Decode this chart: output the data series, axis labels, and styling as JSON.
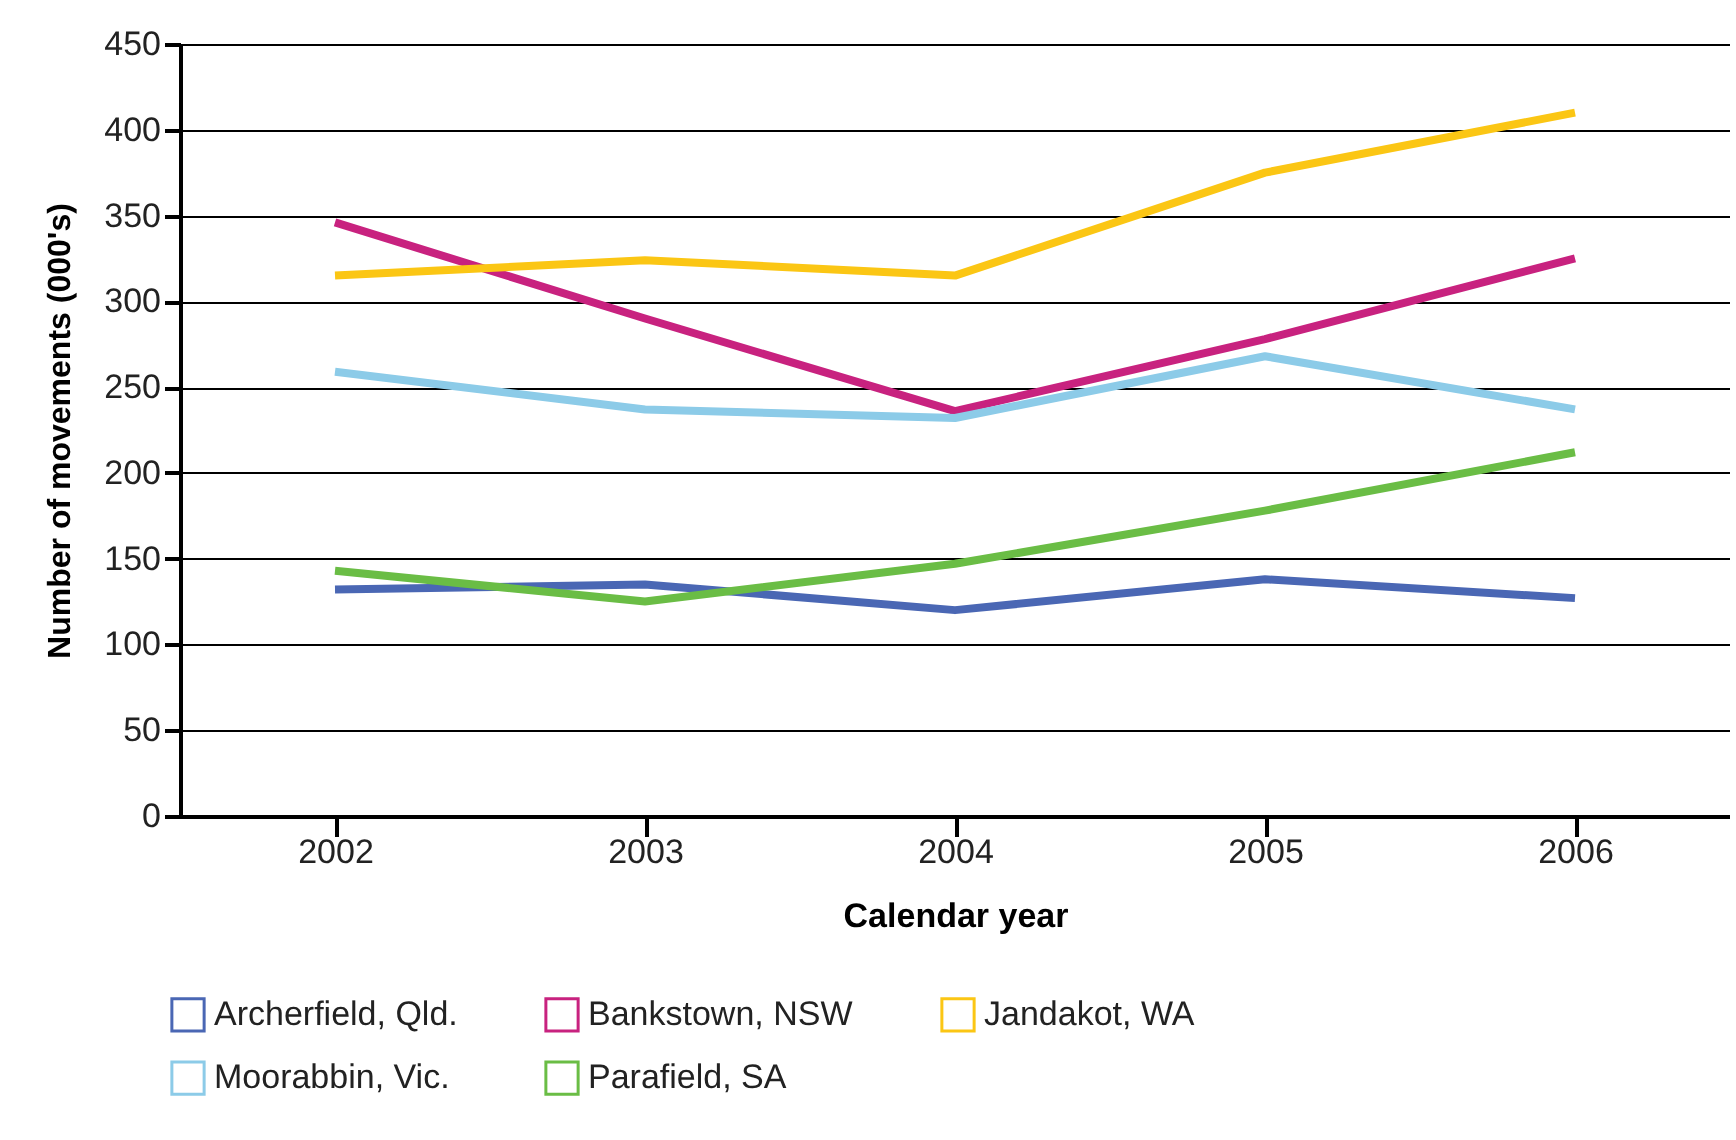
{
  "chart_data": {
    "type": "line",
    "xlabel": "Calendar year",
    "ylabel": "Number of movements (000's)",
    "categories": [
      "2002",
      "2003",
      "2004",
      "2005",
      "2006"
    ],
    "ylim": [
      0,
      450
    ],
    "yticks": [
      0,
      50,
      100,
      150,
      200,
      250,
      300,
      350,
      400,
      450
    ],
    "grid": "y",
    "legend": "bottom",
    "marker": "none",
    "line_style": "solid",
    "series": [
      {
        "name": "Archerfield, Qld.",
        "color": "#4a67b4",
        "values": [
          132,
          135,
          120,
          138,
          127
        ]
      },
      {
        "name": "Bankstown, NSW",
        "color": "#c8227f",
        "values": [
          346,
          290,
          236,
          278,
          325
        ]
      },
      {
        "name": "Jandakot, WA",
        "color": "#fbc614",
        "values": [
          315,
          324,
          315,
          375,
          410
        ]
      },
      {
        "name": "Moorabbin, Vic.",
        "color": "#8ccbe8",
        "values": [
          259,
          237,
          232,
          268,
          237
        ]
      },
      {
        "name": "Parafield, SA",
        "color": "#6abd45",
        "values": [
          143,
          125,
          147,
          178,
          212
        ]
      }
    ]
  }
}
